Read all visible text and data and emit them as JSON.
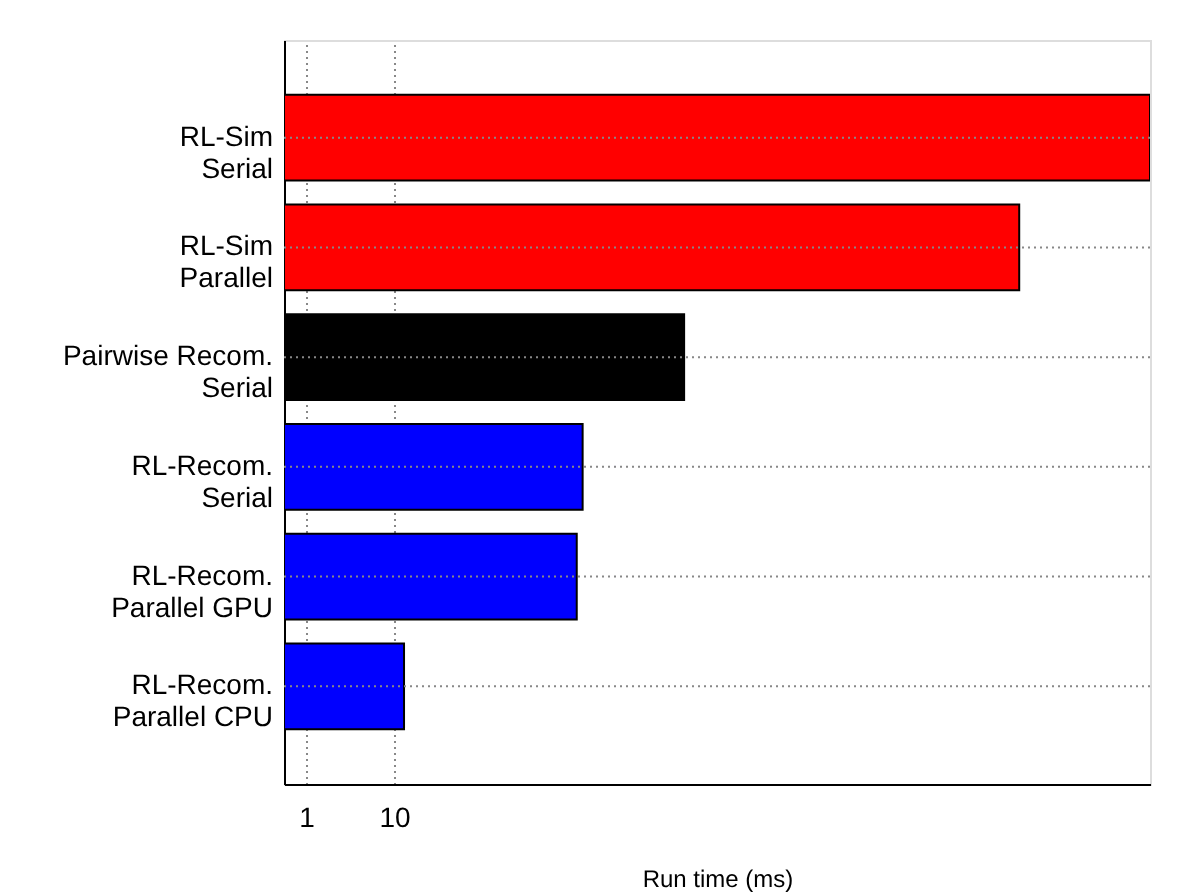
{
  "chart_data": {
    "type": "bar",
    "orientation": "horizontal",
    "xlabel": "Run time (ms)",
    "categories": [
      "RL-Sim\nSerial",
      "RL-Sim\nParallel",
      "Pairwise Recom.\nSerial",
      "RL-Recom.\nSerial",
      "RL-Recom.\nParallel GPU",
      "RL-Recom.\nParallel CPU"
    ],
    "values": [
      4000000000,
      130000000,
      20000,
      1400,
      1200,
      13
    ],
    "colors": [
      "#ff0000",
      "#ff0000",
      "#000000",
      "#0000ff",
      "#0000ff",
      "#0000ff"
    ],
    "log": "x",
    "xlim": [
      0.56,
      4000000000
    ],
    "xticks": [
      1,
      10
    ],
    "grid": true,
    "line_style": "dotted"
  }
}
